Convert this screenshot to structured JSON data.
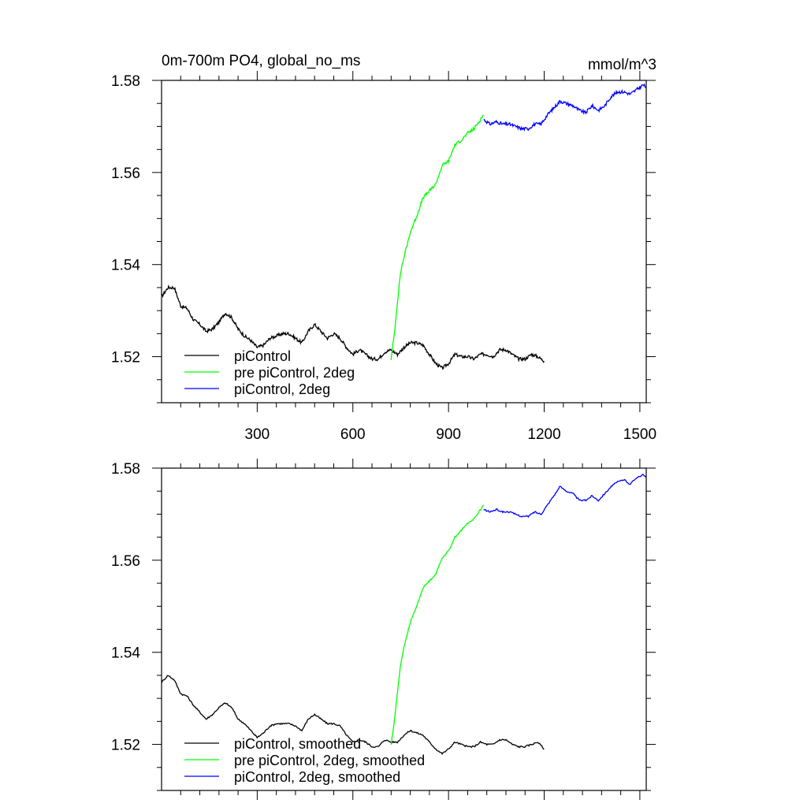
{
  "figure": {
    "title_left": "0m-700m PO4, global_no_ms",
    "title_right": "mmol/m^3"
  },
  "chart_data": [
    {
      "type": "line",
      "xlim": [
        0,
        1520
      ],
      "ylim": [
        1.51,
        1.58
      ],
      "xticks": [
        300,
        600,
        900,
        1200,
        1500
      ],
      "xtick_labels": [
        "300",
        "600",
        "900",
        "1200",
        "1500"
      ],
      "yticks": [
        1.52,
        1.54,
        1.56,
        1.58
      ],
      "ytick_labels": [
        "1.52",
        "1.54",
        "1.56",
        "1.58"
      ],
      "grid": false,
      "legend_position": "bottom-left",
      "series": [
        {
          "name": "piControl",
          "color": "#000000",
          "x": [
            0,
            20,
            40,
            60,
            80,
            100,
            120,
            140,
            160,
            180,
            200,
            220,
            240,
            260,
            280,
            300,
            320,
            340,
            360,
            380,
            400,
            420,
            440,
            460,
            480,
            500,
            520,
            540,
            560,
            580,
            600,
            620,
            640,
            660,
            680,
            700,
            720,
            740,
            760,
            780,
            800,
            820,
            840,
            860,
            880,
            900,
            920,
            940,
            960,
            980,
            1000,
            1020,
            1040,
            1060,
            1080,
            1100,
            1120,
            1140,
            1160,
            1180,
            1200
          ],
          "y": [
            1.533,
            1.535,
            1.535,
            1.531,
            1.5305,
            1.528,
            1.527,
            1.5255,
            1.526,
            1.5275,
            1.5295,
            1.5285,
            1.526,
            1.5245,
            1.5235,
            1.522,
            1.5225,
            1.524,
            1.5245,
            1.525,
            1.525,
            1.524,
            1.523,
            1.5255,
            1.527,
            1.5255,
            1.524,
            1.525,
            1.524,
            1.522,
            1.5205,
            1.5215,
            1.5205,
            1.5195,
            1.5195,
            1.521,
            1.5215,
            1.5205,
            1.522,
            1.523,
            1.523,
            1.5225,
            1.5205,
            1.5185,
            1.5175,
            1.5185,
            1.5205,
            1.52,
            1.52,
            1.5195,
            1.5205,
            1.5205,
            1.52,
            1.5215,
            1.5215,
            1.5205,
            1.5195,
            1.5195,
            1.5205,
            1.52,
            1.519
          ]
        },
        {
          "name": "pre piControl, 2deg",
          "color": "#00ff00",
          "x": [
            720,
            730,
            740,
            750,
            760,
            780,
            800,
            820,
            840,
            860,
            880,
            900,
            920,
            940,
            960,
            980,
            1000,
            1010
          ],
          "y": [
            1.5195,
            1.525,
            1.532,
            1.5385,
            1.5415,
            1.547,
            1.5505,
            1.5545,
            1.556,
            1.5575,
            1.5615,
            1.5625,
            1.566,
            1.567,
            1.5685,
            1.5695,
            1.5715,
            1.5725
          ]
        },
        {
          "name": "piControl, 2deg",
          "color": "#0000ff",
          "x": [
            1010,
            1030,
            1050,
            1070,
            1090,
            1110,
            1130,
            1150,
            1170,
            1190,
            1210,
            1230,
            1250,
            1270,
            1290,
            1310,
            1330,
            1350,
            1370,
            1390,
            1410,
            1430,
            1450,
            1470,
            1490,
            1510,
            1520
          ],
          "y": [
            1.5715,
            1.5705,
            1.571,
            1.5705,
            1.5705,
            1.57,
            1.5695,
            1.5695,
            1.5705,
            1.5705,
            1.5725,
            1.574,
            1.5755,
            1.575,
            1.5745,
            1.5735,
            1.573,
            1.5745,
            1.5735,
            1.5745,
            1.5765,
            1.5775,
            1.5775,
            1.577,
            1.578,
            1.579,
            1.5785
          ]
        }
      ]
    },
    {
      "type": "line",
      "xlim": [
        0,
        1520
      ],
      "ylim": [
        1.51,
        1.58
      ],
      "xticks": [
        300,
        600,
        900,
        1200,
        1500
      ],
      "xtick_labels": [],
      "yticks": [
        1.52,
        1.54,
        1.56,
        1.58
      ],
      "ytick_labels": [
        "1.52",
        "1.54",
        "1.56",
        "1.58"
      ],
      "grid": false,
      "legend_position": "bottom-left",
      "series": [
        {
          "name": "piControl, smoothed",
          "color": "#000000",
          "x": [
            0,
            20,
            40,
            60,
            80,
            100,
            120,
            140,
            160,
            180,
            200,
            220,
            240,
            260,
            280,
            300,
            320,
            340,
            360,
            380,
            400,
            420,
            440,
            460,
            480,
            500,
            520,
            540,
            560,
            580,
            600,
            620,
            640,
            660,
            680,
            700,
            720,
            740,
            760,
            780,
            800,
            820,
            840,
            860,
            880,
            900,
            920,
            940,
            960,
            980,
            1000,
            1020,
            1040,
            1060,
            1080,
            1100,
            1120,
            1140,
            1160,
            1180,
            1200
          ],
          "y": [
            1.5335,
            1.535,
            1.534,
            1.531,
            1.5305,
            1.5285,
            1.527,
            1.5255,
            1.5265,
            1.528,
            1.529,
            1.528,
            1.5255,
            1.5245,
            1.523,
            1.5215,
            1.5225,
            1.524,
            1.5245,
            1.5245,
            1.5245,
            1.524,
            1.523,
            1.5255,
            1.5265,
            1.5255,
            1.5245,
            1.5245,
            1.524,
            1.522,
            1.5205,
            1.521,
            1.5205,
            1.5195,
            1.5195,
            1.521,
            1.5205,
            1.5205,
            1.522,
            1.523,
            1.5225,
            1.522,
            1.5205,
            1.519,
            1.518,
            1.519,
            1.5205,
            1.52,
            1.5195,
            1.5195,
            1.5205,
            1.52,
            1.52,
            1.521,
            1.521,
            1.52,
            1.5195,
            1.5195,
            1.52,
            1.5205,
            1.519
          ]
        },
        {
          "name": "pre piControl, 2deg, smoothed",
          "color": "#00ff00",
          "x": [
            720,
            730,
            740,
            750,
            760,
            780,
            800,
            820,
            840,
            860,
            880,
            900,
            920,
            940,
            960,
            980,
            1000,
            1010
          ],
          "y": [
            1.52,
            1.525,
            1.5315,
            1.5375,
            1.541,
            1.5465,
            1.55,
            1.554,
            1.5555,
            1.557,
            1.5605,
            1.562,
            1.565,
            1.5665,
            1.568,
            1.569,
            1.571,
            1.572
          ]
        },
        {
          "name": "piControl, 2deg, smoothed",
          "color": "#0000ff",
          "x": [
            1010,
            1030,
            1050,
            1070,
            1090,
            1110,
            1130,
            1150,
            1170,
            1190,
            1210,
            1230,
            1250,
            1270,
            1290,
            1310,
            1330,
            1350,
            1370,
            1390,
            1410,
            1430,
            1450,
            1470,
            1490,
            1510,
            1520
          ],
          "y": [
            1.571,
            1.5705,
            1.571,
            1.5705,
            1.5705,
            1.57,
            1.5695,
            1.5695,
            1.5705,
            1.57,
            1.572,
            1.574,
            1.576,
            1.575,
            1.5745,
            1.573,
            1.573,
            1.574,
            1.573,
            1.5745,
            1.576,
            1.577,
            1.5775,
            1.5765,
            1.578,
            1.5785,
            1.578
          ]
        }
      ]
    }
  ]
}
